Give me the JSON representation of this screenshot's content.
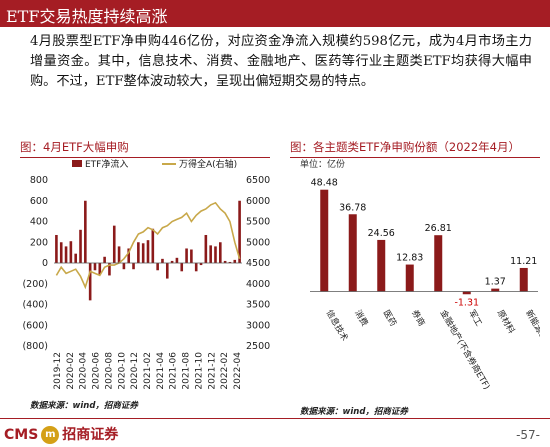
{
  "header": {
    "title": "ETF交易热度持续高涨"
  },
  "body": {
    "paragraph": "4月股票型ETF净申购446亿份，对应资金净流入规模约598亿元，成为4月市场主力增量资金。其中，信息技术、消费、金融地产、医药等行业主题类ETF均获得大幅申购。不过，ETF整体波动较大，呈现出偏短期交易的特点。"
  },
  "left_panel": {
    "title": "图：4月ETF大幅申购",
    "source": "数据来源：wind，招商证券"
  },
  "right_panel": {
    "title": "图：各主题类ETF净申购份额（2022年4月）",
    "unit": "单位：亿份",
    "source": "数据来源：wind，招商证券"
  },
  "footer": {
    "logo_text": "CMS",
    "logo_mark": "m",
    "logo_cn": "招商证券",
    "page": "-57-"
  },
  "colors": {
    "accent": "#a51d24",
    "bar": "#8b1a1a",
    "line": "#c8a84a"
  },
  "chart_data": [
    {
      "type": "bar+line",
      "title": "图：4月ETF大幅申购",
      "series": [
        {
          "name": "ETF净流入",
          "type": "bar",
          "axis": "left",
          "values": [
            270,
            200,
            160,
            210,
            90,
            320,
            600,
            -360,
            -70,
            -110,
            60,
            -120,
            360,
            160,
            -60,
            140,
            -60,
            200,
            190,
            220,
            330,
            -70,
            40,
            -150,
            20,
            50,
            -80,
            140,
            130,
            -80,
            -20,
            270,
            170,
            160,
            200,
            20,
            10,
            30,
            600
          ]
        },
        {
          "name": "万得全A(右轴)",
          "type": "line",
          "axis": "right",
          "values": [
            4200,
            4400,
            4250,
            4300,
            4350,
            4180,
            3920,
            4300,
            4250,
            4200,
            4400,
            4450,
            4450,
            4500,
            4600,
            4750,
            5000,
            5200,
            5250,
            5350,
            5300,
            5200,
            5350,
            5400,
            5500,
            5550,
            5600,
            5700,
            5500,
            5650,
            5750,
            5800,
            5900,
            5950,
            5800,
            5700,
            5500,
            5000,
            4600
          ]
        }
      ],
      "x_tick_labels": [
        "2019-12",
        "2020-02",
        "2020-04",
        "2020-06",
        "2020-08",
        "2020-10",
        "2020-12",
        "2021-02",
        "2021-04",
        "2021-06",
        "2021-08",
        "2021-10",
        "2021-12",
        "2022-02",
        "2022-04"
      ],
      "y_left": {
        "ticks": [
          "800",
          "600",
          "400",
          "200",
          "0",
          "(200)",
          "(400)",
          "(600)",
          "(800)"
        ],
        "lim": [
          -800,
          800
        ]
      },
      "y_right": {
        "ticks": [
          "6500",
          "6000",
          "5500",
          "5000",
          "4500",
          "4000",
          "3500",
          "3000",
          "2500"
        ],
        "lim": [
          2500,
          6500
        ]
      },
      "legend_position": "top"
    },
    {
      "type": "bar",
      "title": "图：各主题类ETF净申购份额（2022年4月）",
      "categories": [
        "信息技术",
        "消费",
        "医药",
        "券商",
        "金融地产(不含券商ETF)",
        "军工",
        "原材料",
        "新能源&智能汽车"
      ],
      "values": [
        48.48,
        36.78,
        24.56,
        12.83,
        26.81,
        -1.31,
        1.37,
        11.21
      ],
      "value_labels": [
        "48.48",
        "36.78",
        "24.56",
        "12.83",
        "26.81",
        "-1.31",
        "1.37",
        "11.21"
      ],
      "ylim": [
        -5,
        55
      ]
    }
  ]
}
